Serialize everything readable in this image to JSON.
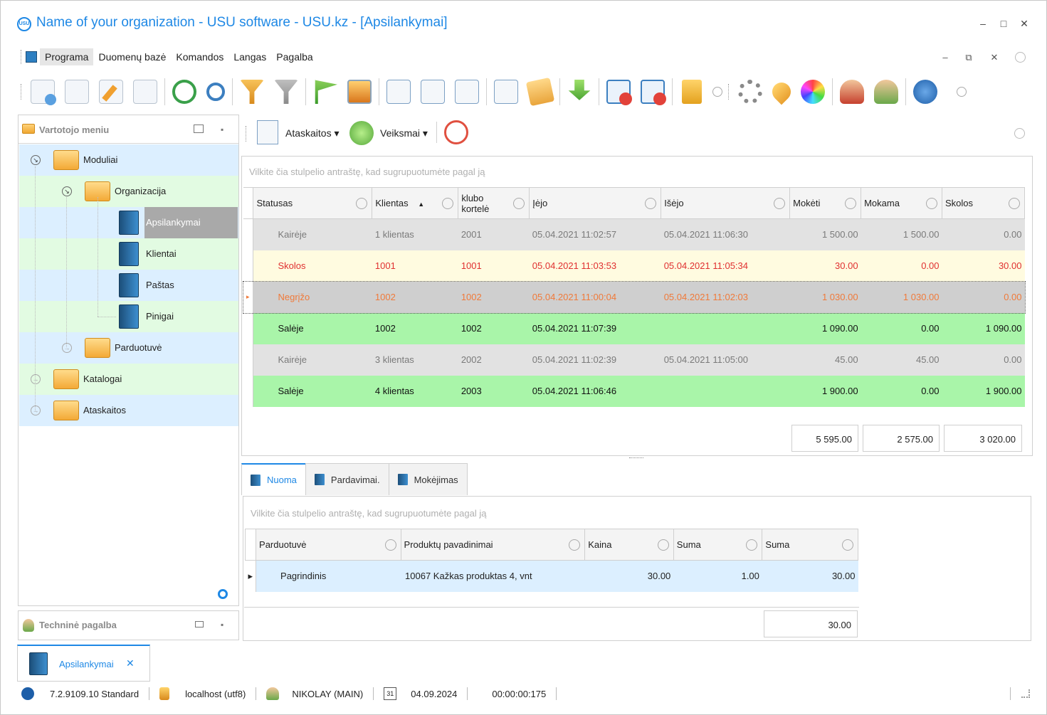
{
  "window": {
    "title": "Name of your organization - USU software - USU.kz - [Apsilankymai]",
    "logo_text": "USU",
    "minimize": "–",
    "maximize": "□",
    "close": "✕"
  },
  "menubar": {
    "items": [
      "Programa",
      "Duomenų bazė",
      "Komandos",
      "Langas",
      "Pagalba"
    ],
    "mdi_min": "–",
    "mdi_restore": "⧉",
    "mdi_close": "✕"
  },
  "left_panel": {
    "title": "Vartotojo meniu",
    "tree": {
      "moduliai": "Moduliai",
      "organizacija": "Organizacija",
      "apsilankymai": "Apsilankymai",
      "klientai": "Klientai",
      "pastas": "Paštas",
      "pinigai": "Pinigai",
      "parduotuve": "Parduotuvė",
      "katalogai": "Katalogai",
      "ataskaitos": "Ataskaitos"
    },
    "collapse_glyph": "↘",
    "expand_glyph": "→"
  },
  "support_panel": {
    "title": "Techninė pagalba"
  },
  "right_toolbar": {
    "reports_label": "Ataskaitos",
    "actions_label": "Veiksmai"
  },
  "main_grid": {
    "group_hint": "Vilkite čia stulpelio antraštę, kad sugrupuotumėte pagal ją",
    "columns": [
      "Statusas",
      "Klientas",
      "klubo kortelė",
      "Įėjo",
      "Išėjo",
      "Mokėti",
      "Mokama",
      "Skolos"
    ],
    "sort_glyph": "▲",
    "rows": [
      {
        "style": "r-gray",
        "status": "Kairėje",
        "client": "1 klientas",
        "card": "2001",
        "in": "05.04.2021 11:02:57",
        "out": "05.04.2021 11:06:30",
        "pay": "1 500.00",
        "paid": "1 500.00",
        "debt": "0.00"
      },
      {
        "style": "r-yellow",
        "status": "Skolos",
        "client": "1001",
        "card": "1001",
        "in": "05.04.2021 11:03:53",
        "out": "05.04.2021 11:05:34",
        "pay": "30.00",
        "paid": "0.00",
        "debt": "30.00"
      },
      {
        "style": "r-sel",
        "status": "Negrįžo",
        "client": "1002",
        "card": "1002",
        "in": "05.04.2021 11:00:04",
        "out": "05.04.2021 11:02:03",
        "pay": "1 030.00",
        "paid": "1 030.00",
        "debt": "0.00"
      },
      {
        "style": "r-green",
        "status": "Salėje",
        "client": "1002",
        "card": "1002",
        "in": "05.04.2021 11:07:39",
        "out": "",
        "pay": "1 090.00",
        "paid": "0.00",
        "debt": "1 090.00"
      },
      {
        "style": "r-gray",
        "status": "Kairėje",
        "client": "3 klientas",
        "card": "2002",
        "in": "05.04.2021 11:02:39",
        "out": "05.04.2021 11:05:00",
        "pay": "45.00",
        "paid": "45.00",
        "debt": "0.00"
      },
      {
        "style": "r-green",
        "status": "Salėje",
        "client": "4 klientas",
        "card": "2003",
        "in": "05.04.2021 11:06:46",
        "out": "",
        "pay": "1 900.00",
        "paid": "0.00",
        "debt": "1 900.00"
      }
    ],
    "totals": {
      "pay": "5 595.00",
      "paid": "2 575.00",
      "debt": "3 020.00"
    }
  },
  "tabs": [
    "Nuoma",
    "Pardavimai.",
    "Mokėjimas"
  ],
  "sub_grid": {
    "group_hint": "Vilkite čia stulpelio antraštę, kad sugrupuotumėte pagal ją",
    "columns": [
      "Parduotuvė",
      "Produktų pavadinimai",
      "Kaina",
      "Suma",
      "Suma"
    ],
    "rows": [
      {
        "shop": "Pagrindinis",
        "product": "10067 Kažkas produktas 4, vnt",
        "price": "30.00",
        "qty": "1.00",
        "sum": "30.00"
      }
    ],
    "total": "30.00"
  },
  "doc_tab": {
    "label": "Apsilankymai",
    "close": "✕"
  },
  "statusbar": {
    "version": "7.2.9109.10 Standard",
    "db": "localhost (utf8)",
    "user": "NIKOLAY (MAIN)",
    "calendar_day": "31",
    "date": "04.09.2024",
    "timer": "00:00:00:175"
  }
}
